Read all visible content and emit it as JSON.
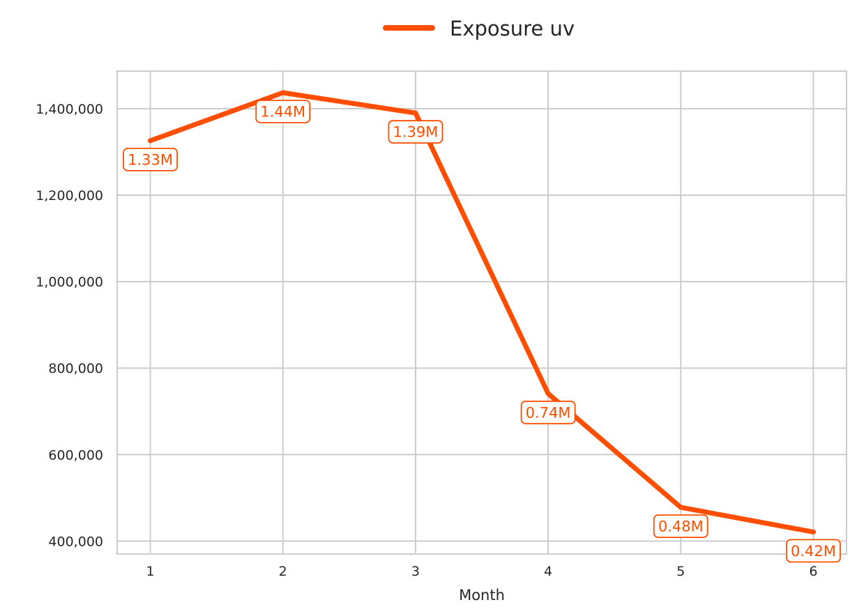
{
  "chart_data": {
    "type": "line",
    "x": [
      1,
      2,
      3,
      4,
      5,
      6
    ],
    "x_ticks": [
      "1",
      "2",
      "3",
      "4",
      "5",
      "6"
    ],
    "xlabel": "Month",
    "ylabel": "",
    "xlim": [
      0.75,
      6.25
    ],
    "ylim": [
      370000,
      1487000
    ],
    "y_ticks": [
      400000,
      600000,
      800000,
      1000000,
      1200000,
      1400000
    ],
    "y_tick_labels": [
      "400,000",
      "600,000",
      "800,000",
      "1,000,000",
      "1,200,000",
      "1,400,000"
    ],
    "grid": true,
    "legend_position": "top-center",
    "series": [
      {
        "name": "Exposure uv",
        "color": "#ff4e00",
        "values": [
          1326000,
          1437000,
          1390000,
          741000,
          478000,
          421000
        ],
        "labels": [
          "1.33M",
          "1.44M",
          "1.39M",
          "0.74M",
          "0.48M",
          "0.42M"
        ]
      }
    ]
  }
}
